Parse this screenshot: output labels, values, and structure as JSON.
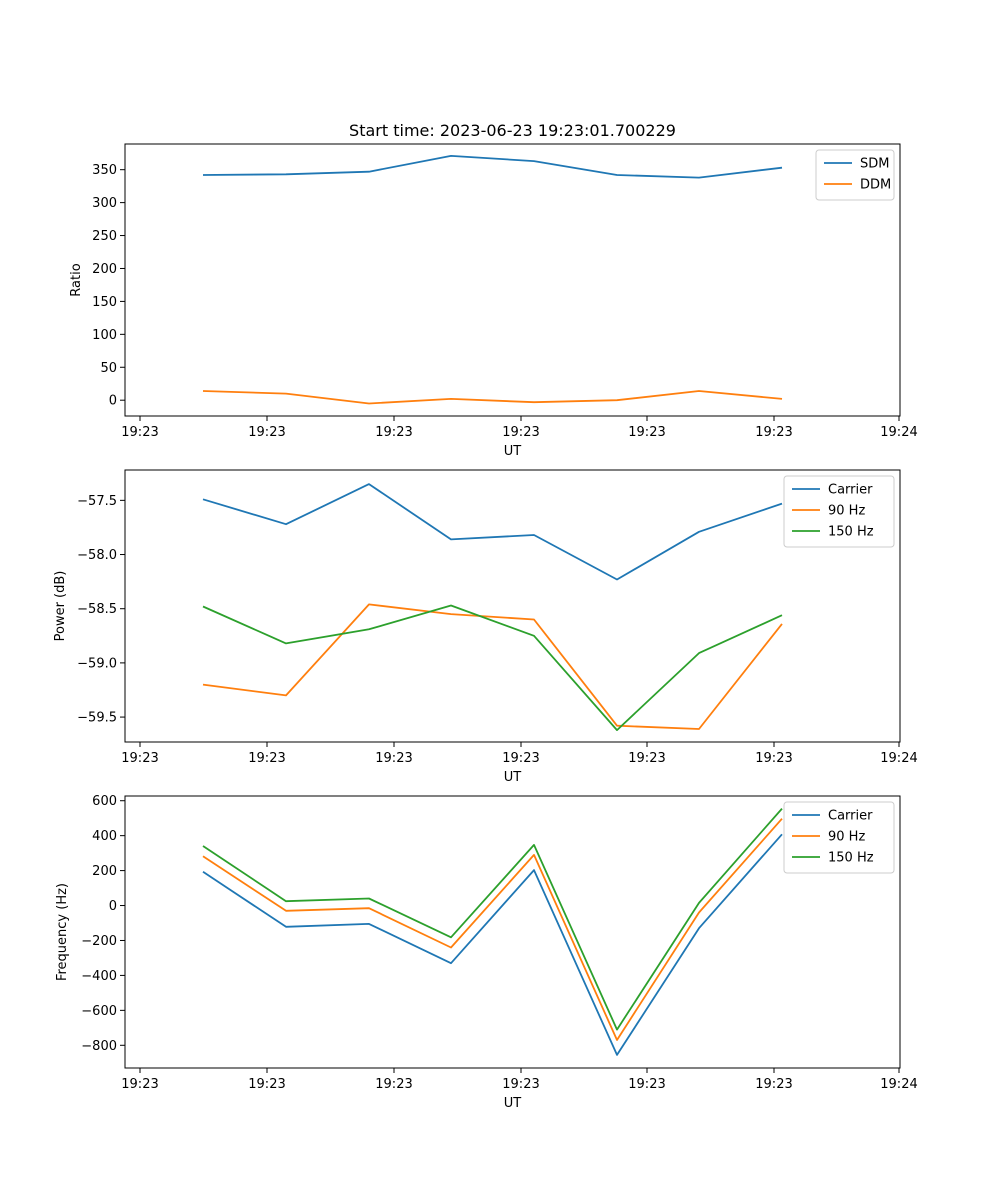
{
  "figure": {
    "title": "Start time: 2023-06-23 19:23:01.700229"
  },
  "chart_data": [
    {
      "type": "line",
      "xlabel": "UT",
      "ylabel": "Ratio",
      "x_tick_labels": [
        "19:23",
        "19:23",
        "19:23",
        "19:23",
        "19:23",
        "19:23",
        "19:24"
      ],
      "y_ticks": [
        0,
        50,
        100,
        150,
        200,
        250,
        300,
        350
      ],
      "ylim": [
        -24,
        389
      ],
      "legend_position": "upper-right",
      "series": [
        {
          "name": "SDM",
          "color": "#1f77b4",
          "values": [
            342,
            343,
            347,
            371,
            363,
            342,
            338,
            353
          ]
        },
        {
          "name": "DDM",
          "color": "#ff7f0e",
          "values": [
            14,
            10,
            -5,
            2,
            -3,
            0,
            14,
            2
          ]
        }
      ]
    },
    {
      "type": "line",
      "xlabel": "UT",
      "ylabel": "Power (dB)",
      "x_tick_labels": [
        "19:23",
        "19:23",
        "19:23",
        "19:23",
        "19:23",
        "19:23",
        "19:24"
      ],
      "y_ticks": [
        -57.5,
        -58.0,
        -58.5,
        -59.0,
        -59.5
      ],
      "y_tick_labels": [
        "−57.5",
        "−58.0",
        "−58.5",
        "−59.0",
        "−59.5"
      ],
      "ylim": [
        -59.73,
        -57.22
      ],
      "legend_position": "upper-right",
      "series": [
        {
          "name": "Carrier",
          "color": "#1f77b4",
          "values": [
            -57.49,
            -57.72,
            -57.35,
            -57.86,
            -57.82,
            -58.23,
            -57.79,
            -57.53
          ]
        },
        {
          "name": "90 Hz",
          "color": "#ff7f0e",
          "values": [
            -59.2,
            -59.3,
            -58.46,
            -58.55,
            -58.6,
            -59.58,
            -59.61,
            -58.64
          ]
        },
        {
          "name": "150 Hz",
          "color": "#2ca02c",
          "values": [
            -58.48,
            -58.82,
            -58.69,
            -58.47,
            -58.75,
            -59.62,
            -58.91,
            -58.56
          ]
        }
      ]
    },
    {
      "type": "line",
      "xlabel": "UT",
      "ylabel": "Frequency (Hz)",
      "x_tick_labels": [
        "19:23",
        "19:23",
        "19:23",
        "19:23",
        "19:23",
        "19:23",
        "19:24"
      ],
      "y_ticks": [
        600,
        400,
        200,
        0,
        -200,
        -400,
        -600,
        -800
      ],
      "y_tick_labels": [
        "600",
        "400",
        "200",
        "0",
        "−200",
        "−400",
        "−600",
        "−800"
      ],
      "ylim": [
        -930,
        627
      ],
      "legend_position": "upper-right",
      "series": [
        {
          "name": "Carrier",
          "color": "#1f77b4",
          "values": [
            193,
            -122,
            -105,
            -330,
            203,
            -855,
            -130,
            408
          ]
        },
        {
          "name": "90 Hz",
          "color": "#ff7f0e",
          "values": [
            282,
            -30,
            -15,
            -240,
            290,
            -770,
            -40,
            497
          ]
        },
        {
          "name": "150 Hz",
          "color": "#2ca02c",
          "values": [
            341,
            25,
            40,
            -182,
            347,
            -710,
            15,
            555
          ]
        }
      ]
    }
  ]
}
